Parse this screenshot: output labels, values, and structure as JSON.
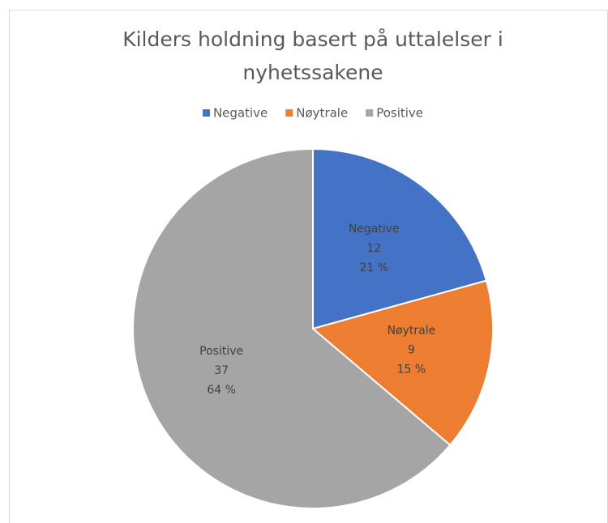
{
  "chart_data": {
    "type": "pie",
    "title": "Kilders holdning basert på uttalelser i nyhetssakene",
    "title_lines": [
      "Kilders holdning basert på uttalelser i",
      "nyhetssakene"
    ],
    "categories": [
      "Negative",
      "Nøytrale",
      "Positive"
    ],
    "values": [
      12,
      9,
      37
    ],
    "percent_labels": [
      "21 %",
      "15 %",
      "64 %"
    ],
    "colors": [
      "#4472c4",
      "#ed7d31",
      "#a5a5a5"
    ],
    "legend": "top"
  }
}
